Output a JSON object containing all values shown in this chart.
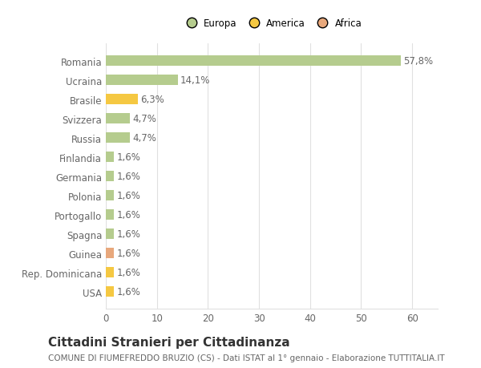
{
  "categories": [
    "Romania",
    "Ucraina",
    "Brasile",
    "Svizzera",
    "Russia",
    "Finlandia",
    "Germania",
    "Polonia",
    "Portogallo",
    "Spagna",
    "Guinea",
    "Rep. Dominicana",
    "USA"
  ],
  "values": [
    57.8,
    14.1,
    6.3,
    4.7,
    4.7,
    1.6,
    1.6,
    1.6,
    1.6,
    1.6,
    1.6,
    1.6,
    1.6
  ],
  "labels": [
    "57,8%",
    "14,1%",
    "6,3%",
    "4,7%",
    "4,7%",
    "1,6%",
    "1,6%",
    "1,6%",
    "1,6%",
    "1,6%",
    "1,6%",
    "1,6%",
    "1,6%"
  ],
  "colors": [
    "#b5cc8e",
    "#b5cc8e",
    "#f5c842",
    "#b5cc8e",
    "#b5cc8e",
    "#b5cc8e",
    "#b5cc8e",
    "#b5cc8e",
    "#b5cc8e",
    "#b5cc8e",
    "#e8a87c",
    "#f5c842",
    "#f5c842"
  ],
  "legend_labels": [
    "Europa",
    "America",
    "Africa"
  ],
  "legend_colors": [
    "#b5cc8e",
    "#f5c842",
    "#e8a87c"
  ],
  "title": "Cittadini Stranieri per Cittadinanza",
  "subtitle": "COMUNE DI FIUMEFREDDO BRUZIO (CS) - Dati ISTAT al 1° gennaio - Elaborazione TUTTITALIA.IT",
  "xlim": [
    0,
    65
  ],
  "xticks": [
    0,
    10,
    20,
    30,
    40,
    50,
    60
  ],
  "background_color": "#ffffff",
  "bar_height": 0.55,
  "grid_color": "#e0e0e0",
  "text_color": "#666666",
  "label_fontsize": 8.5,
  "title_fontsize": 11,
  "subtitle_fontsize": 7.5
}
